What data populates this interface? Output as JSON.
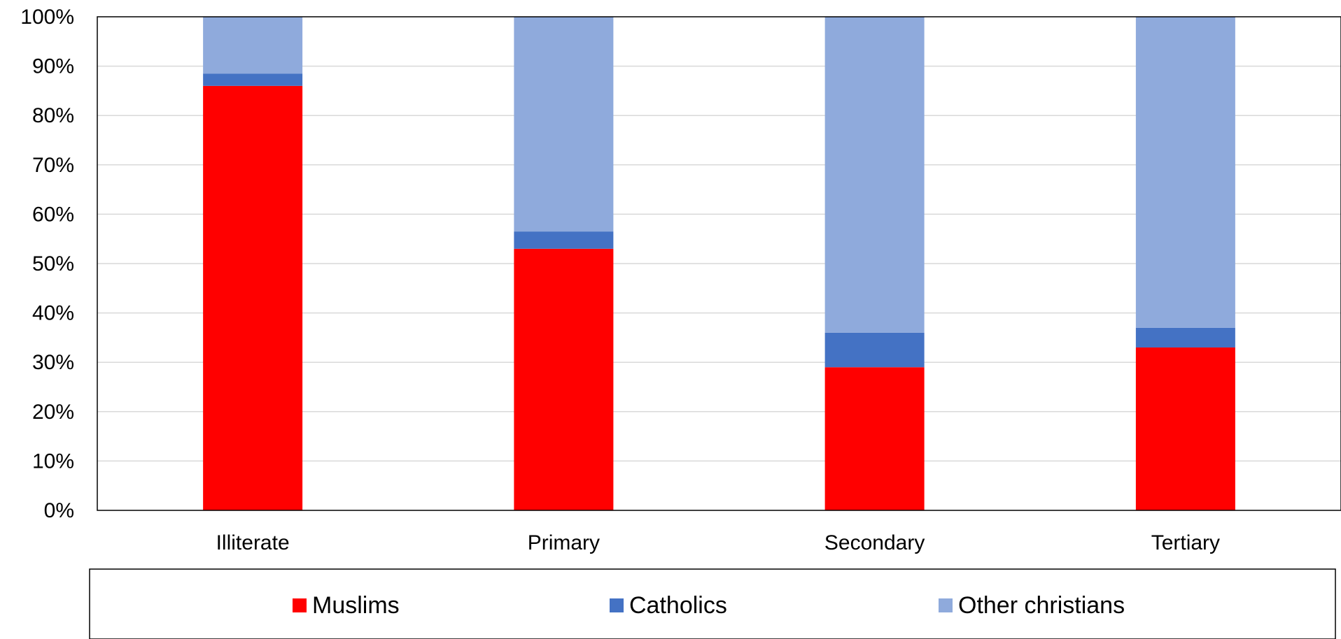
{
  "chart_data": {
    "type": "bar",
    "stacked": true,
    "percent": true,
    "categories": [
      "Illiterate",
      "Primary",
      "Secondary",
      "Tertiary"
    ],
    "series": [
      {
        "name": "Muslims",
        "color": "#ff0000",
        "values": [
          86,
          53,
          29,
          33
        ]
      },
      {
        "name": "Catholics",
        "color": "#4472c4",
        "values": [
          2.5,
          3.5,
          7,
          4
        ]
      },
      {
        "name": "Other christians",
        "color": "#8faadc",
        "values": [
          11.5,
          43.5,
          64,
          63
        ]
      }
    ],
    "ylim": [
      0,
      100
    ],
    "yticks": [
      "0%",
      "10%",
      "20%",
      "30%",
      "40%",
      "50%",
      "60%",
      "70%",
      "80%",
      "90%",
      "100%"
    ],
    "grid": true,
    "legend_position": "bottom"
  }
}
